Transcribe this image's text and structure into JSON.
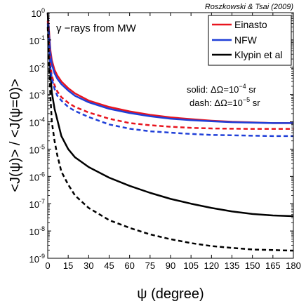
{
  "chart_data": {
    "type": "line",
    "credit": "Roszkowski & Tsai (2009)",
    "annotation_title": "γ −rays from MW",
    "annotation_solid": "solid: ΔΩ=10",
    "annotation_solid_exp": "−4",
    "annotation_dash": "dash: ΔΩ=10",
    "annotation_dash_exp": "−5",
    "annotation_unit": " sr",
    "xlabel": "ψ (degree)",
    "ylabel": "<J(ψ)>  /  <J(ψ=0)>",
    "x_ticks": [
      0,
      15,
      30,
      45,
      60,
      75,
      90,
      105,
      120,
      135,
      150,
      165,
      180
    ],
    "xlim": [
      0,
      180
    ],
    "ylim": [
      1e-09,
      1
    ],
    "y_scale": "log",
    "y_tick_exponents": [
      0,
      -1,
      -2,
      -3,
      -4,
      -5,
      -6,
      -7,
      -8,
      -9
    ],
    "legend_position": "top-right",
    "x": [
      0,
      1,
      2,
      3,
      5,
      7,
      10,
      15,
      20,
      30,
      45,
      60,
      75,
      90,
      105,
      120,
      135,
      150,
      165,
      180
    ],
    "series": [
      {
        "name": "Einasto",
        "color": "#e8141e",
        "style": "solid",
        "values": [
          1,
          0.2,
          0.04,
          0.018,
          0.008,
          0.005,
          0.003,
          0.0017,
          0.0011,
          0.0006,
          0.00035,
          0.00024,
          0.00018,
          0.000145,
          0.000125,
          0.00011,
          0.0001,
          9.5e-05,
          9e-05,
          9e-05
        ]
      },
      {
        "name": "NFW",
        "color": "#1f3fd8",
        "style": "solid",
        "values": [
          1,
          0.15,
          0.03,
          0.013,
          0.006,
          0.0038,
          0.0024,
          0.0014,
          0.0009,
          0.00052,
          0.0003,
          0.00021,
          0.00016,
          0.00013,
          0.000115,
          0.000105,
          9.7e-05,
          9.3e-05,
          9e-05,
          9e-05
        ]
      },
      {
        "name": "Klypin et al",
        "color": "#000000",
        "style": "solid",
        "values": [
          1,
          0.05,
          0.006,
          0.0012,
          0.0003,
          0.00012,
          3e-05,
          1e-05,
          5e-06,
          2.2e-06,
          9e-07,
          4.5e-07,
          2.5e-07,
          1.5e-07,
          1e-07,
          7e-08,
          5.2e-08,
          4.2e-08,
          3.7e-08,
          3.5e-08
        ]
      },
      {
        "name": "",
        "color": "#e8141e",
        "style": "dash",
        "values": [
          0.5,
          0.06,
          0.012,
          0.005,
          0.0022,
          0.0013,
          0.0008,
          0.0005,
          0.00035,
          0.00022,
          0.00013,
          9e-05,
          7.5e-05,
          6.6e-05,
          6e-05,
          5.7e-05,
          5.6e-05,
          5.5e-05,
          5.5e-05,
          5.5e-05
        ]
      },
      {
        "name": "",
        "color": "#1f3fd8",
        "style": "dash",
        "values": [
          0.4,
          0.045,
          0.009,
          0.0038,
          0.0016,
          0.0009,
          0.0006,
          0.00035,
          0.00025,
          0.00015,
          8e-05,
          5.6e-05,
          4.5e-05,
          4e-05,
          3.6e-05,
          3.3e-05,
          3.2e-05,
          3.1e-05,
          3e-05,
          3e-05
        ]
      },
      {
        "name": "",
        "color": "#000000",
        "style": "dash",
        "values": [
          0.3,
          0.01,
          0.0008,
          0.0001,
          2e-05,
          6e-06,
          1.5e-06,
          5e-07,
          2e-07,
          7e-08,
          2.5e-08,
          1.3e-08,
          7.5e-09,
          5e-09,
          3.6e-09,
          2.8e-09,
          2.4e-09,
          2.1e-09,
          2e-09,
          1.9e-09
        ]
      }
    ]
  }
}
